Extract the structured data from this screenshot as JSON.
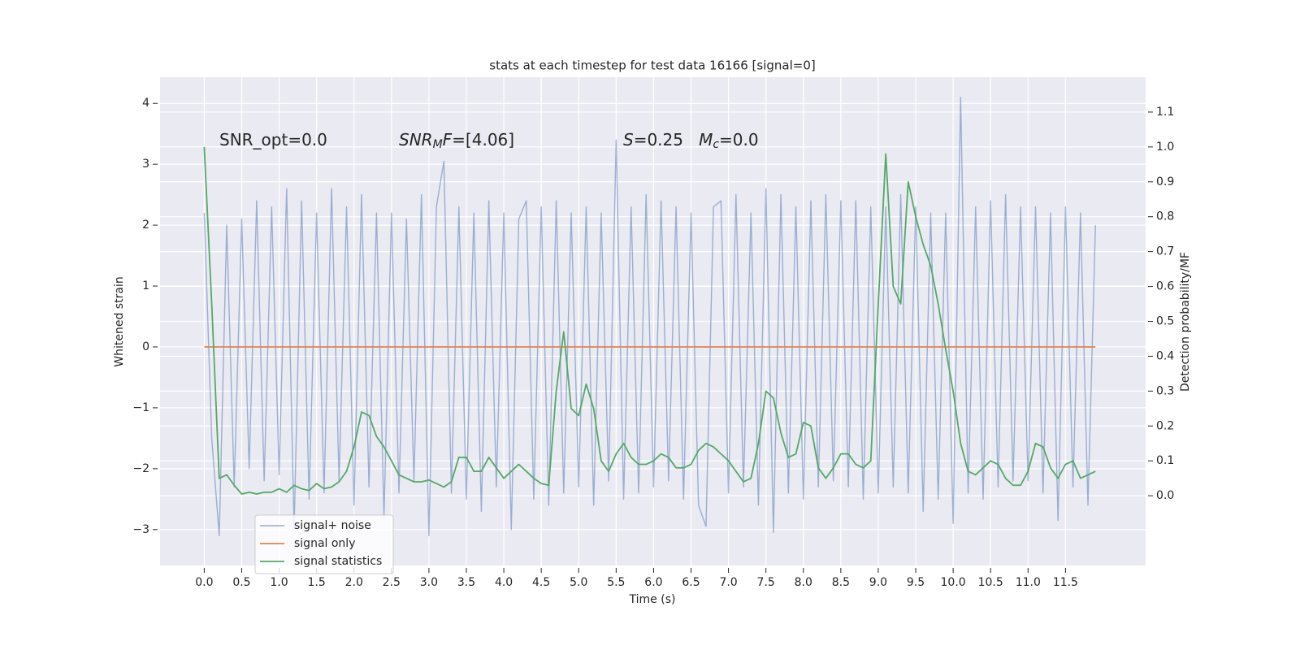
{
  "chart_data": {
    "type": "line",
    "title": "stats at each timestep for test data 16166 [signal=0]",
    "xlabel": "Time (s)",
    "ylabel": "Whitened strain",
    "y2label": "Detection probability/MF",
    "grid": true,
    "legend": "lower left",
    "xlim": [
      -0.59,
      12.57
    ],
    "ylim": [
      -3.59,
      4.43
    ],
    "y2lim": [
      -0.2,
      1.2
    ],
    "xticks": [
      {
        "value": 0,
        "label": "0.0"
      },
      0.5,
      {
        "value": 1,
        "label": "1.0"
      },
      1.5,
      {
        "value": 2,
        "label": "2.0"
      },
      2.5,
      {
        "value": 3,
        "label": "3.0"
      },
      3.5,
      {
        "value": 4,
        "label": "4.0"
      },
      4.5,
      {
        "value": 5,
        "label": "5.0"
      },
      5.5,
      {
        "value": 6,
        "label": "6.0"
      },
      6.5,
      {
        "value": 7,
        "label": "7.0"
      },
      7.5,
      {
        "value": 8,
        "label": "8.0"
      },
      8.5,
      {
        "value": 9,
        "label": "9.0"
      },
      9.5,
      {
        "value": 10,
        "label": "10.0"
      },
      10.5,
      {
        "value": 11,
        "label": "11.0"
      },
      11.5
    ],
    "yticks": [
      {
        "value": -3,
        "label": "−3"
      },
      {
        "value": -2,
        "label": "−2"
      },
      {
        "value": -1,
        "label": "−1"
      },
      0,
      1,
      2,
      3,
      4
    ],
    "y2ticks": [
      {
        "value": 0,
        "label": "0.0"
      },
      0.1,
      0.2,
      0.3,
      0.4,
      0.5,
      0.6,
      0.7,
      0.8,
      0.9,
      {
        "value": 1,
        "label": "1.0"
      },
      1.1
    ],
    "annotations": [
      {
        "segments": [
          {
            "text": "SNR_opt=0.0",
            "style": "normal"
          }
        ]
      },
      {
        "segments": [
          {
            "text": "SNR",
            "style": "italic"
          },
          {
            "text": "M",
            "style": "sub"
          },
          {
            "text": "F",
            "style": "italic"
          },
          {
            "text": "=[4.06]",
            "style": "normal"
          }
        ]
      },
      {
        "segments": [
          {
            "text": "S",
            "style": "italic"
          },
          {
            "text": "=0.25   ",
            "style": "normal"
          },
          {
            "text": "M",
            "style": "italic"
          },
          {
            "text": "c",
            "style": "sub"
          },
          {
            "text": "=0.0",
            "style": "normal"
          }
        ]
      }
    ],
    "x": [
      0,
      0.1,
      0.2,
      0.3,
      0.4,
      0.5,
      0.6,
      0.7,
      0.8,
      0.9,
      1,
      1.1,
      1.2,
      1.3,
      1.4,
      1.5,
      1.6,
      1.7,
      1.8,
      1.9,
      2,
      2.1,
      2.2,
      2.3,
      2.4,
      2.5,
      2.6,
      2.7,
      2.8,
      2.9,
      3,
      3.1,
      3.2,
      3.3,
      3.4,
      3.5,
      3.6,
      3.7,
      3.8,
      3.9,
      4,
      4.1,
      4.2,
      4.3,
      4.4,
      4.5,
      4.6,
      4.7,
      4.8,
      4.9,
      5,
      5.1,
      5.2,
      5.3,
      5.4,
      5.5,
      5.6,
      5.7,
      5.8,
      5.9,
      6,
      6.1,
      6.2,
      6.3,
      6.4,
      6.5,
      6.6,
      6.7,
      6.8,
      6.9,
      7,
      7.1,
      7.2,
      7.3,
      7.4,
      7.5,
      7.6,
      7.7,
      7.8,
      7.9,
      8,
      8.1,
      8.2,
      8.3,
      8.4,
      8.5,
      8.6,
      8.7,
      8.8,
      8.9,
      9,
      9.1,
      9.2,
      9.3,
      9.4,
      9.5,
      9.6,
      9.7,
      9.8,
      9.9,
      10,
      10.1,
      10.2,
      10.3,
      10.4,
      10.5,
      10.6,
      10.7,
      10.8,
      10.9,
      11,
      11.1,
      11.2,
      11.3,
      11.4,
      11.5,
      11.6,
      11.7,
      11.8,
      11.9
    ],
    "series": [
      {
        "name": "signal+ noise",
        "color": "#4c72b0",
        "opacity": 0.5,
        "values": [
          2.2,
          -1.5,
          -3.1,
          2.0,
          -2.3,
          2.1,
          -2.0,
          2.4,
          -2.2,
          2.3,
          -2.1,
          2.6,
          -3.0,
          2.4,
          -2.5,
          2.2,
          -2.4,
          2.6,
          -2.2,
          2.3,
          -2.6,
          2.5,
          -2.3,
          2.2,
          -2.8,
          2.2,
          -2.4,
          2.1,
          -2.2,
          2.5,
          -3.1,
          2.3,
          3.05,
          -2.4,
          2.3,
          -2.5,
          2.2,
          -2.7,
          2.4,
          -2.3,
          2.2,
          -3.0,
          2.1,
          2.4,
          -2.5,
          2.3,
          -2.6,
          2.4,
          -2.4,
          2.2,
          -2.3,
          2.3,
          -2.6,
          2.2,
          -2.2,
          3.4,
          -2.5,
          2.3,
          -2.4,
          2.5,
          -2.3,
          2.4,
          -2.2,
          2.3,
          -2.5,
          2.2,
          -2.6,
          -2.95,
          2.3,
          2.4,
          -2.4,
          2.5,
          -2.3,
          2.2,
          -2.6,
          2.6,
          -3.05,
          2.5,
          -2.4,
          2.3,
          -2.5,
          2.4,
          -2.3,
          2.5,
          -2.2,
          2.4,
          -2.3,
          2.4,
          -2.5,
          2.3,
          -2.4,
          2.3,
          -2.3,
          2.5,
          -2.4,
          2.3,
          -2.7,
          2.2,
          -2.5,
          2.2,
          -2.9,
          4.1,
          -2.4,
          2.3,
          -2.5,
          2.4,
          -2.3,
          2.5,
          -2.2,
          2.3,
          -2.2,
          2.3,
          -2.4,
          2.2,
          -2.85,
          2.3,
          -2.3,
          2.2,
          -2.6,
          2.0
        ]
      },
      {
        "name": "signal only",
        "color": "#dd8452",
        "opacity": 1,
        "x": [
          0,
          11.9
        ],
        "values": [
          0,
          0
        ]
      },
      {
        "name": "signal statistics",
        "color": "#55a868",
        "opacity": 1,
        "axis": "y2",
        "values": [
          1.0,
          0.55,
          0.05,
          0.06,
          0.03,
          0.005,
          0.01,
          0.005,
          0.01,
          0.01,
          0.02,
          0.01,
          0.03,
          0.02,
          0.015,
          0.035,
          0.02,
          0.025,
          0.04,
          0.07,
          0.14,
          0.24,
          0.23,
          0.17,
          0.14,
          0.1,
          0.06,
          0.05,
          0.04,
          0.04,
          0.045,
          0.035,
          0.025,
          0.04,
          0.11,
          0.11,
          0.07,
          0.07,
          0.11,
          0.08,
          0.05,
          0.07,
          0.09,
          0.07,
          0.05,
          0.035,
          0.03,
          0.3,
          0.47,
          0.25,
          0.23,
          0.32,
          0.25,
          0.1,
          0.07,
          0.12,
          0.15,
          0.11,
          0.09,
          0.09,
          0.1,
          0.12,
          0.11,
          0.08,
          0.08,
          0.09,
          0.13,
          0.15,
          0.14,
          0.12,
          0.1,
          0.07,
          0.04,
          0.05,
          0.15,
          0.3,
          0.28,
          0.18,
          0.11,
          0.12,
          0.21,
          0.2,
          0.08,
          0.05,
          0.08,
          0.12,
          0.12,
          0.09,
          0.08,
          0.1,
          0.55,
          0.98,
          0.6,
          0.55,
          0.9,
          0.8,
          0.72,
          0.66,
          0.55,
          0.42,
          0.3,
          0.15,
          0.07,
          0.06,
          0.08,
          0.1,
          0.09,
          0.05,
          0.03,
          0.03,
          0.07,
          0.15,
          0.14,
          0.08,
          0.05,
          0.09,
          0.1,
          0.05,
          0.06,
          0.07
        ]
      }
    ]
  }
}
